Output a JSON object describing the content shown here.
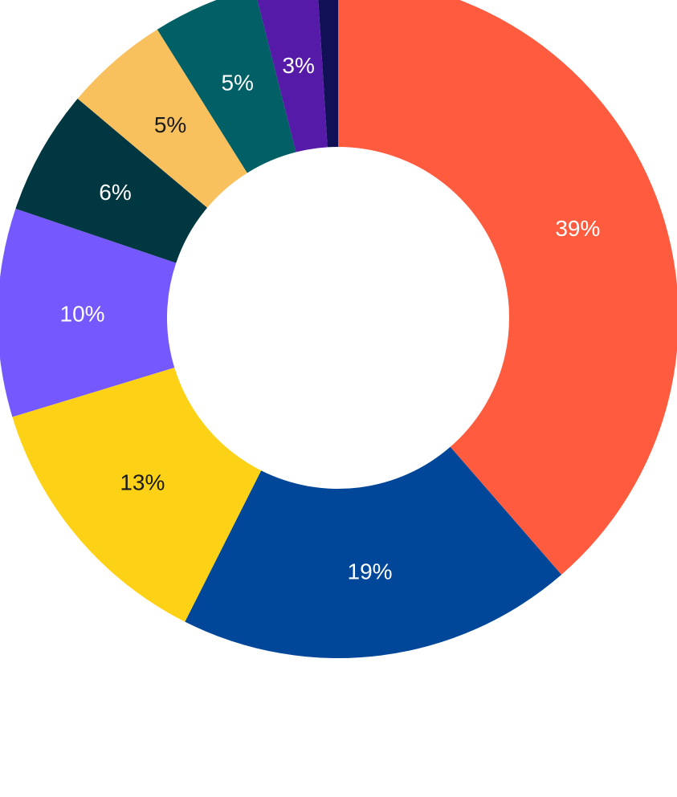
{
  "chart_data": {
    "type": "pie",
    "donut": true,
    "start": "12 o'clock, clockwise",
    "slices": [
      {
        "value": 39,
        "label": "39%",
        "color": "#ff5c3f",
        "label_color": "#ffffff"
      },
      {
        "value": 19,
        "label": "19%",
        "color": "#004699",
        "label_color": "#ffffff"
      },
      {
        "value": 13,
        "label": "13%",
        "color": "#fdd216",
        "label_color": "#1a1a1a"
      },
      {
        "value": 10,
        "label": "10%",
        "color": "#7559ff",
        "label_color": "#ffffff"
      },
      {
        "value": 6,
        "label": "6%",
        "color": "#003741",
        "label_color": "#ffffff"
      },
      {
        "value": 5,
        "label": "5%",
        "color": "#f8c15e",
        "label_color": "#1a1a1a"
      },
      {
        "value": 5,
        "label": "5%",
        "color": "#006066",
        "label_color": "#ffffff"
      },
      {
        "value": 3,
        "label": "3%",
        "color": "#561aa8",
        "label_color": "#ffffff"
      },
      {
        "value": 1,
        "label": "",
        "color": "#111057",
        "label_color": "#ffffff"
      }
    ]
  }
}
